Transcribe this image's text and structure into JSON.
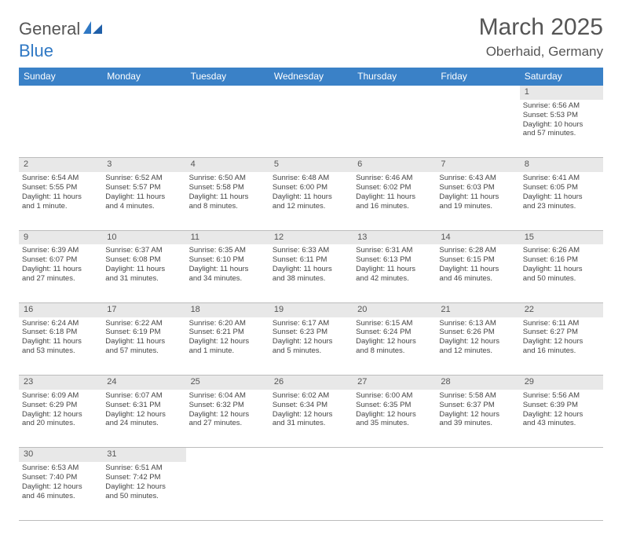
{
  "logo": {
    "general": "General",
    "blue": "Blue"
  },
  "title": "March 2025",
  "location": "Oberhaid, Germany",
  "colors": {
    "header_bg": "#3a81c7",
    "header_text": "#ffffff",
    "daynum_bg": "#e8e8e8",
    "border": "#bcbcbc",
    "accent_border": "#3a81c7",
    "text": "#444444",
    "title_text": "#555555",
    "logo_blue": "#2f78c4"
  },
  "weekdays": [
    "Sunday",
    "Monday",
    "Tuesday",
    "Wednesday",
    "Thursday",
    "Friday",
    "Saturday"
  ],
  "weeks": [
    [
      null,
      null,
      null,
      null,
      null,
      null,
      {
        "day": "1",
        "sunrise": "Sunrise: 6:56 AM",
        "sunset": "Sunset: 5:53 PM",
        "daylight1": "Daylight: 10 hours",
        "daylight2": "and 57 minutes."
      }
    ],
    [
      {
        "day": "2",
        "sunrise": "Sunrise: 6:54 AM",
        "sunset": "Sunset: 5:55 PM",
        "daylight1": "Daylight: 11 hours",
        "daylight2": "and 1 minute."
      },
      {
        "day": "3",
        "sunrise": "Sunrise: 6:52 AM",
        "sunset": "Sunset: 5:57 PM",
        "daylight1": "Daylight: 11 hours",
        "daylight2": "and 4 minutes."
      },
      {
        "day": "4",
        "sunrise": "Sunrise: 6:50 AM",
        "sunset": "Sunset: 5:58 PM",
        "daylight1": "Daylight: 11 hours",
        "daylight2": "and 8 minutes."
      },
      {
        "day": "5",
        "sunrise": "Sunrise: 6:48 AM",
        "sunset": "Sunset: 6:00 PM",
        "daylight1": "Daylight: 11 hours",
        "daylight2": "and 12 minutes."
      },
      {
        "day": "6",
        "sunrise": "Sunrise: 6:46 AM",
        "sunset": "Sunset: 6:02 PM",
        "daylight1": "Daylight: 11 hours",
        "daylight2": "and 16 minutes."
      },
      {
        "day": "7",
        "sunrise": "Sunrise: 6:43 AM",
        "sunset": "Sunset: 6:03 PM",
        "daylight1": "Daylight: 11 hours",
        "daylight2": "and 19 minutes."
      },
      {
        "day": "8",
        "sunrise": "Sunrise: 6:41 AM",
        "sunset": "Sunset: 6:05 PM",
        "daylight1": "Daylight: 11 hours",
        "daylight2": "and 23 minutes."
      }
    ],
    [
      {
        "day": "9",
        "sunrise": "Sunrise: 6:39 AM",
        "sunset": "Sunset: 6:07 PM",
        "daylight1": "Daylight: 11 hours",
        "daylight2": "and 27 minutes."
      },
      {
        "day": "10",
        "sunrise": "Sunrise: 6:37 AM",
        "sunset": "Sunset: 6:08 PM",
        "daylight1": "Daylight: 11 hours",
        "daylight2": "and 31 minutes."
      },
      {
        "day": "11",
        "sunrise": "Sunrise: 6:35 AM",
        "sunset": "Sunset: 6:10 PM",
        "daylight1": "Daylight: 11 hours",
        "daylight2": "and 34 minutes."
      },
      {
        "day": "12",
        "sunrise": "Sunrise: 6:33 AM",
        "sunset": "Sunset: 6:11 PM",
        "daylight1": "Daylight: 11 hours",
        "daylight2": "and 38 minutes."
      },
      {
        "day": "13",
        "sunrise": "Sunrise: 6:31 AM",
        "sunset": "Sunset: 6:13 PM",
        "daylight1": "Daylight: 11 hours",
        "daylight2": "and 42 minutes."
      },
      {
        "day": "14",
        "sunrise": "Sunrise: 6:28 AM",
        "sunset": "Sunset: 6:15 PM",
        "daylight1": "Daylight: 11 hours",
        "daylight2": "and 46 minutes."
      },
      {
        "day": "15",
        "sunrise": "Sunrise: 6:26 AM",
        "sunset": "Sunset: 6:16 PM",
        "daylight1": "Daylight: 11 hours",
        "daylight2": "and 50 minutes."
      }
    ],
    [
      {
        "day": "16",
        "sunrise": "Sunrise: 6:24 AM",
        "sunset": "Sunset: 6:18 PM",
        "daylight1": "Daylight: 11 hours",
        "daylight2": "and 53 minutes."
      },
      {
        "day": "17",
        "sunrise": "Sunrise: 6:22 AM",
        "sunset": "Sunset: 6:19 PM",
        "daylight1": "Daylight: 11 hours",
        "daylight2": "and 57 minutes."
      },
      {
        "day": "18",
        "sunrise": "Sunrise: 6:20 AM",
        "sunset": "Sunset: 6:21 PM",
        "daylight1": "Daylight: 12 hours",
        "daylight2": "and 1 minute."
      },
      {
        "day": "19",
        "sunrise": "Sunrise: 6:17 AM",
        "sunset": "Sunset: 6:23 PM",
        "daylight1": "Daylight: 12 hours",
        "daylight2": "and 5 minutes."
      },
      {
        "day": "20",
        "sunrise": "Sunrise: 6:15 AM",
        "sunset": "Sunset: 6:24 PM",
        "daylight1": "Daylight: 12 hours",
        "daylight2": "and 8 minutes."
      },
      {
        "day": "21",
        "sunrise": "Sunrise: 6:13 AM",
        "sunset": "Sunset: 6:26 PM",
        "daylight1": "Daylight: 12 hours",
        "daylight2": "and 12 minutes."
      },
      {
        "day": "22",
        "sunrise": "Sunrise: 6:11 AM",
        "sunset": "Sunset: 6:27 PM",
        "daylight1": "Daylight: 12 hours",
        "daylight2": "and 16 minutes."
      }
    ],
    [
      {
        "day": "23",
        "sunrise": "Sunrise: 6:09 AM",
        "sunset": "Sunset: 6:29 PM",
        "daylight1": "Daylight: 12 hours",
        "daylight2": "and 20 minutes."
      },
      {
        "day": "24",
        "sunrise": "Sunrise: 6:07 AM",
        "sunset": "Sunset: 6:31 PM",
        "daylight1": "Daylight: 12 hours",
        "daylight2": "and 24 minutes."
      },
      {
        "day": "25",
        "sunrise": "Sunrise: 6:04 AM",
        "sunset": "Sunset: 6:32 PM",
        "daylight1": "Daylight: 12 hours",
        "daylight2": "and 27 minutes."
      },
      {
        "day": "26",
        "sunrise": "Sunrise: 6:02 AM",
        "sunset": "Sunset: 6:34 PM",
        "daylight1": "Daylight: 12 hours",
        "daylight2": "and 31 minutes."
      },
      {
        "day": "27",
        "sunrise": "Sunrise: 6:00 AM",
        "sunset": "Sunset: 6:35 PM",
        "daylight1": "Daylight: 12 hours",
        "daylight2": "and 35 minutes."
      },
      {
        "day": "28",
        "sunrise": "Sunrise: 5:58 AM",
        "sunset": "Sunset: 6:37 PM",
        "daylight1": "Daylight: 12 hours",
        "daylight2": "and 39 minutes."
      },
      {
        "day": "29",
        "sunrise": "Sunrise: 5:56 AM",
        "sunset": "Sunset: 6:39 PM",
        "daylight1": "Daylight: 12 hours",
        "daylight2": "and 43 minutes."
      }
    ],
    [
      {
        "day": "30",
        "sunrise": "Sunrise: 6:53 AM",
        "sunset": "Sunset: 7:40 PM",
        "daylight1": "Daylight: 12 hours",
        "daylight2": "and 46 minutes."
      },
      {
        "day": "31",
        "sunrise": "Sunrise: 6:51 AM",
        "sunset": "Sunset: 7:42 PM",
        "daylight1": "Daylight: 12 hours",
        "daylight2": "and 50 minutes."
      },
      null,
      null,
      null,
      null,
      null
    ]
  ]
}
